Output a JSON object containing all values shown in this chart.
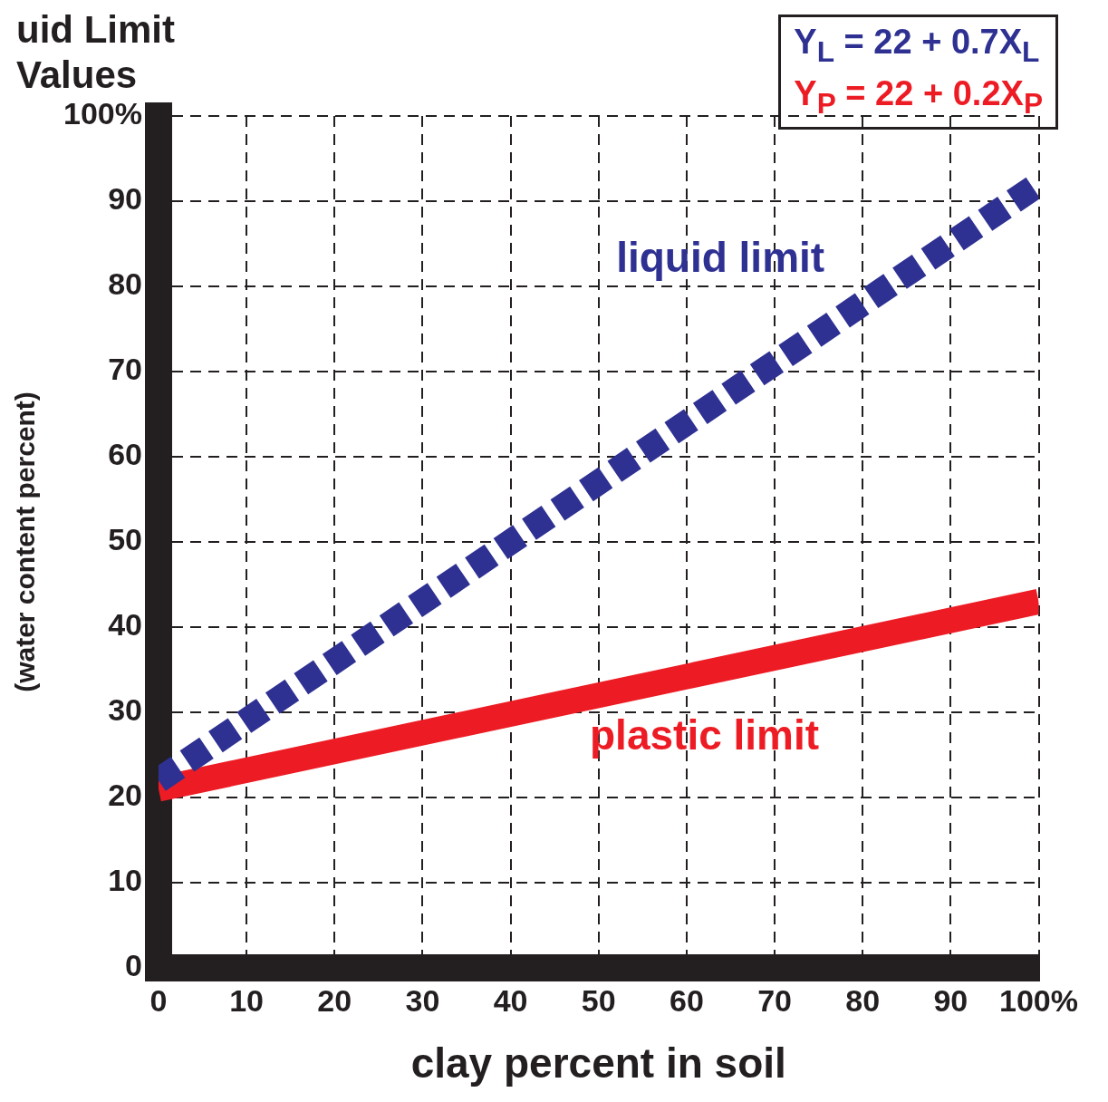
{
  "chart_data": {
    "type": "line",
    "title": "uid Limit Values",
    "xlabel": "clay percent in soil",
    "ylabel": "(water content percent)",
    "x": [
      0,
      100
    ],
    "series": [
      {
        "name": "liquid limit",
        "color": "#2e3192",
        "values": [
          22,
          92
        ],
        "line_style": "dashed"
      },
      {
        "name": "plastic limit",
        "color": "#ed1c24",
        "values": [
          21,
          43
        ],
        "line_style": "solid"
      }
    ],
    "annotations": [
      "Y$_{L}$ = 22 + 0.7X$_{L}$",
      "Y$_{P}$ = 22 + 0.2X$_{P}$"
    ],
    "xlim": [
      0,
      100
    ],
    "xticks": [
      0,
      10,
      20,
      30,
      40,
      50,
      60,
      70,
      80,
      90,
      {
        "value": 100,
        "label": "100%"
      }
    ],
    "ylim": [
      0,
      100
    ],
    "yticks": [
      0,
      10,
      20,
      30,
      40,
      50,
      60,
      70,
      80,
      90,
      {
        "value": 100,
        "label": "100%"
      }
    ],
    "grid": true,
    "legend": false,
    "marker": "none"
  }
}
